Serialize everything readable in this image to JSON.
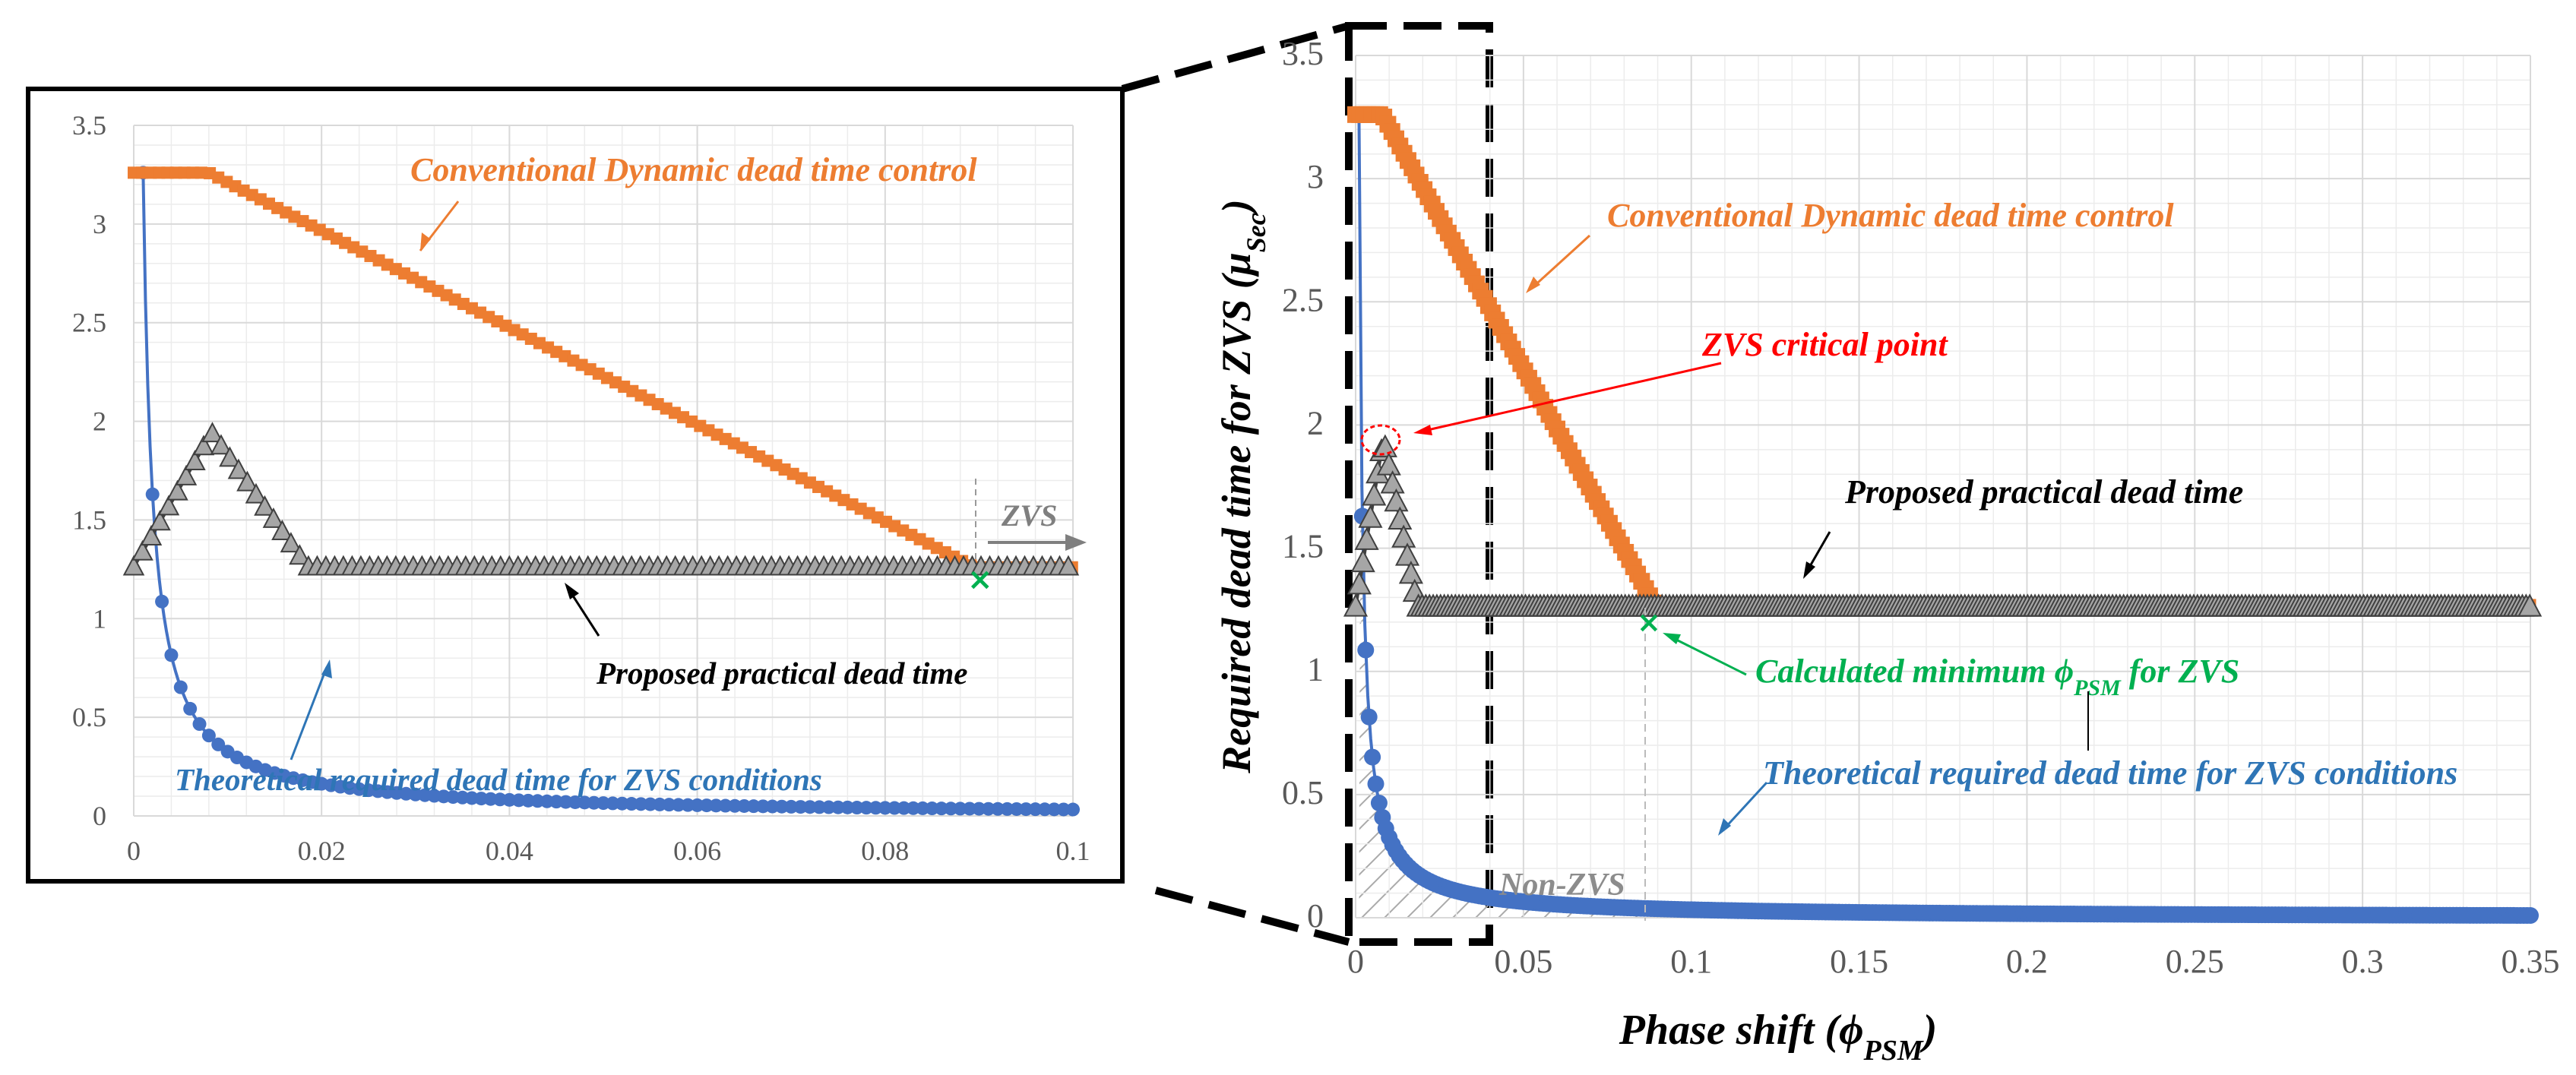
{
  "colors": {
    "orange": "#ED7D31",
    "blue": "#4472C4",
    "grid": "#d9d9d9",
    "black": "#000000",
    "green": "#00B050",
    "red": "#FF0000",
    "gray_text": "#8c8c8c",
    "label_blue": "#2E75B6"
  },
  "chart_data": [
    {
      "type": "scatter",
      "title": "",
      "xlabel": "",
      "ylabel": "",
      "xlim": [
        0,
        0.1
      ],
      "ylim": [
        0,
        3.5
      ],
      "x_ticks": [
        "0",
        "0.02",
        "0.04",
        "0.06",
        "0.08",
        "0.1"
      ],
      "y_ticks": [
        "0",
        "0.5",
        "1",
        "1.5",
        "2",
        "2.5",
        "3",
        "3.5"
      ],
      "grid": true,
      "series": [
        {
          "name": "Conventional Dynamic dead time control",
          "points": [
            [
              0,
              3.26
            ],
            [
              0.008,
              3.26
            ],
            [
              0.0895,
              1.26
            ],
            [
              0.1,
              1.26
            ]
          ]
        },
        {
          "name": "Theoretical required dead time for ZVS conditions",
          "formula": "y = 0.00326 / x, x from 0.001 to 0.1"
        },
        {
          "name": "Proposed practical dead time",
          "points": [
            [
              0,
              1.26
            ],
            [
              0.0083,
              1.94
            ],
            [
              0.0185,
              1.26
            ],
            [
              0.1,
              1.26
            ]
          ]
        }
      ],
      "annotations": {
        "orange_label": "Conventional Dynamic dead time control",
        "blue_label": "Theoretical required dead time for ZVS conditions",
        "black_label": "Proposed practical dead time",
        "zvs_label": "ZVS",
        "zvs_point": [
          0.0895,
          1.26
        ]
      }
    },
    {
      "type": "scatter",
      "title": "",
      "xlabel_main": "Phase shift",
      "xlabel_symbol": "ϕ",
      "xlabel_sub": "PSM",
      "ylabel_main": "Required dead time for ZVS",
      "ylabel_symbol": "μ",
      "ylabel_sub": "Sec",
      "xlim": [
        0,
        0.35
      ],
      "ylim": [
        0,
        3.5
      ],
      "x_ticks": [
        "0",
        "0.05",
        "0.1",
        "0.15",
        "0.2",
        "0.25",
        "0.3",
        "0.35"
      ],
      "y_ticks": [
        "0",
        "0.5",
        "1",
        "1.5",
        "2",
        "2.5",
        "3",
        "3.5"
      ],
      "grid": true,
      "series": [
        {
          "name": "Conventional Dynamic dead time control",
          "points": [
            [
              0,
              3.26
            ],
            [
              0.008,
              3.26
            ],
            [
              0.0895,
              1.26
            ],
            [
              0.35,
              1.26
            ]
          ]
        },
        {
          "name": "Theoretical required dead time for ZVS conditions",
          "formula": "y = 0.00326 / x, x from 0.001 to 0.35"
        },
        {
          "name": "Proposed practical dead time",
          "points": [
            [
              0,
              1.26
            ],
            [
              0.0083,
              1.94
            ],
            [
              0.0185,
              1.26
            ],
            [
              0.35,
              1.26
            ]
          ]
        }
      ],
      "annotations": {
        "orange_label": "Conventional Dynamic dead time control",
        "blue_label": "Theoretical required dead time for ZVS conditions",
        "black_label": "Proposed practical dead time",
        "critical_label": "ZVS critical point",
        "critical_point": [
          0.0083,
          1.94
        ],
        "min_phi_label_pre": "Calculated minimum ",
        "min_phi_symbol": "ϕ",
        "min_phi_sub": "PSM",
        "min_phi_label_post": " for ZVS",
        "min_phi_point": [
          0.0895,
          1.22
        ],
        "non_zvs_label": "Non-ZVS"
      }
    }
  ]
}
